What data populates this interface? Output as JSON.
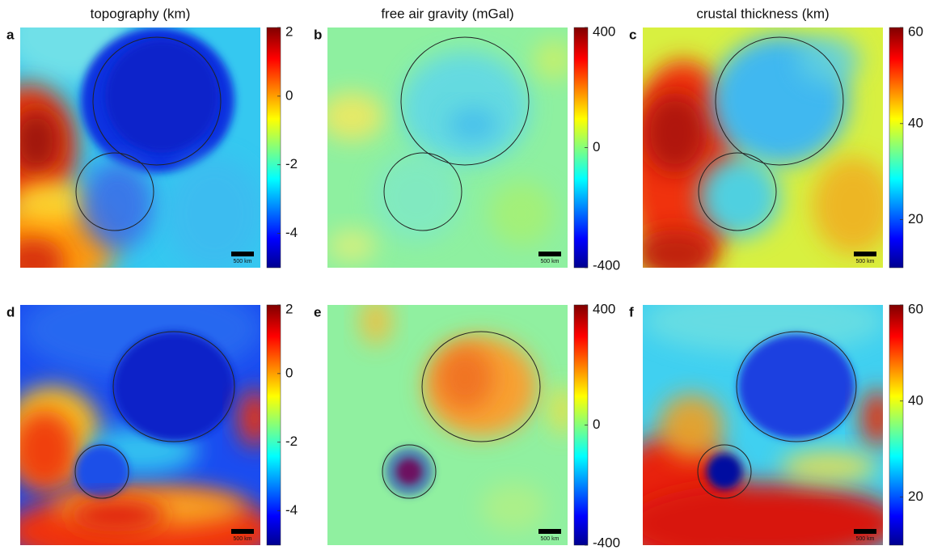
{
  "columns": [
    {
      "title": "topography (km)",
      "colorbar": {
        "lim": [
          -5,
          2
        ],
        "ticks": [
          2,
          0,
          -2,
          -4
        ]
      }
    },
    {
      "title": "free air gravity (mGal)",
      "colorbar": {
        "lim": [
          -400,
          400
        ],
        "ticks": [
          400,
          0,
          -400
        ]
      }
    },
    {
      "title": "crustal thickness (km)",
      "colorbar": {
        "lim": [
          10,
          60
        ],
        "ticks": [
          60,
          40,
          20
        ]
      }
    }
  ],
  "panels": [
    {
      "label": "a",
      "scale_bar": "500 km"
    },
    {
      "label": "b",
      "scale_bar": "500 km"
    },
    {
      "label": "c",
      "scale_bar": "500 km"
    },
    {
      "label": "d",
      "scale_bar": "500 km"
    },
    {
      "label": "e",
      "scale_bar": "500 km"
    },
    {
      "label": "f",
      "scale_bar": "500 km"
    }
  ]
}
